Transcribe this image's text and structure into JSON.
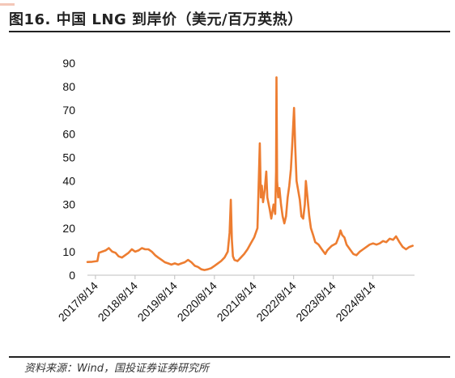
{
  "title": "图16. 中国 LNG 到岸价（美元/百万英热）",
  "source": "资料来源：Wind，国投证券证券研究所",
  "colors": {
    "line": "#ed7d31",
    "axis": "#bfbfbf",
    "text": "#111111"
  },
  "chart_data": {
    "type": "line",
    "title": "图16. 中国 LNG 到岸价（美元/百万英热）",
    "xlabel": "",
    "ylabel": "",
    "ylim": [
      0,
      90
    ],
    "yticks": [
      0,
      10,
      20,
      30,
      40,
      50,
      60,
      70,
      80,
      90
    ],
    "xlim": [
      "2017-06-01",
      "2025-09-01"
    ],
    "xticks": [
      "2017/8/14",
      "2018/8/14",
      "2019/8/14",
      "2020/8/14",
      "2021/8/14",
      "2022/8/14",
      "2023/8/14",
      "2024/8/14"
    ],
    "grid": false,
    "legend": "none",
    "series": [
      {
        "name": "",
        "points": [
          [
            "2017-06-01",
            5.6
          ],
          [
            "2017-07-15",
            5.7
          ],
          [
            "2017-09-01",
            6.0
          ],
          [
            "2017-09-15",
            9.5
          ],
          [
            "2017-10-15",
            10.0
          ],
          [
            "2017-11-15",
            10.5
          ],
          [
            "2017-12-15",
            11.5
          ],
          [
            "2018-01-15",
            10.0
          ],
          [
            "2018-02-15",
            9.5
          ],
          [
            "2018-03-15",
            8.0
          ],
          [
            "2018-04-15",
            7.5
          ],
          [
            "2018-05-15",
            8.5
          ],
          [
            "2018-06-15",
            9.5
          ],
          [
            "2018-07-15",
            11.0
          ],
          [
            "2018-08-15",
            10.0
          ],
          [
            "2018-09-15",
            10.5
          ],
          [
            "2018-10-15",
            11.5
          ],
          [
            "2018-11-15",
            11.0
          ],
          [
            "2018-12-15",
            11.0
          ],
          [
            "2019-01-15",
            10.0
          ],
          [
            "2019-02-15",
            8.5
          ],
          [
            "2019-03-15",
            7.5
          ],
          [
            "2019-04-15",
            6.5
          ],
          [
            "2019-05-15",
            5.5
          ],
          [
            "2019-06-15",
            5.0
          ],
          [
            "2019-07-15",
            4.5
          ],
          [
            "2019-08-15",
            5.0
          ],
          [
            "2019-09-15",
            4.5
          ],
          [
            "2019-10-15",
            5.0
          ],
          [
            "2019-11-15",
            5.5
          ],
          [
            "2019-12-15",
            6.5
          ],
          [
            "2020-01-15",
            5.5
          ],
          [
            "2020-02-15",
            4.0
          ],
          [
            "2020-03-15",
            3.5
          ],
          [
            "2020-04-15",
            2.5
          ],
          [
            "2020-05-15",
            2.2
          ],
          [
            "2020-06-15",
            2.5
          ],
          [
            "2020-07-15",
            3.0
          ],
          [
            "2020-08-15",
            4.0
          ],
          [
            "2020-09-15",
            5.0
          ],
          [
            "2020-10-15",
            6.0
          ],
          [
            "2020-11-15",
            7.5
          ],
          [
            "2020-12-15",
            10.0
          ],
          [
            "2021-01-01",
            18.0
          ],
          [
            "2021-01-12",
            32.0
          ],
          [
            "2021-01-22",
            15.0
          ],
          [
            "2021-02-01",
            8.0
          ],
          [
            "2021-02-15",
            6.5
          ],
          [
            "2021-03-15",
            6.0
          ],
          [
            "2021-04-15",
            7.5
          ],
          [
            "2021-05-15",
            9.0
          ],
          [
            "2021-06-15",
            11.0
          ],
          [
            "2021-07-15",
            13.5
          ],
          [
            "2021-08-15",
            16.0
          ],
          [
            "2021-09-15",
            20.0
          ],
          [
            "2021-10-06",
            56.0
          ],
          [
            "2021-10-16",
            33.0
          ],
          [
            "2021-10-25",
            38.0
          ],
          [
            "2021-11-05",
            31.0
          ],
          [
            "2021-11-20",
            36.0
          ],
          [
            "2021-12-05",
            44.0
          ],
          [
            "2021-12-15",
            33.0
          ],
          [
            "2022-01-05",
            28.0
          ],
          [
            "2022-01-20",
            24.0
          ],
          [
            "2022-02-10",
            30.0
          ],
          [
            "2022-02-25",
            26.0
          ],
          [
            "2022-03-05",
            44.0
          ],
          [
            "2022-03-09",
            84.0
          ],
          [
            "2022-03-15",
            40.0
          ],
          [
            "2022-03-25",
            33.0
          ],
          [
            "2022-04-05",
            37.0
          ],
          [
            "2022-04-20",
            30.0
          ],
          [
            "2022-05-05",
            25.0
          ],
          [
            "2022-05-20",
            22.0
          ],
          [
            "2022-06-05",
            25.0
          ],
          [
            "2022-06-20",
            33.0
          ],
          [
            "2022-07-05",
            38.0
          ],
          [
            "2022-07-20",
            45.0
          ],
          [
            "2022-08-01",
            55.0
          ],
          [
            "2022-08-18",
            71.0
          ],
          [
            "2022-08-28",
            55.0
          ],
          [
            "2022-09-10",
            40.0
          ],
          [
            "2022-09-25",
            36.0
          ],
          [
            "2022-10-10",
            32.0
          ],
          [
            "2022-10-25",
            25.0
          ],
          [
            "2022-11-10",
            24.0
          ],
          [
            "2022-11-25",
            30.0
          ],
          [
            "2022-12-05",
            40.0
          ],
          [
            "2022-12-20",
            33.0
          ],
          [
            "2023-01-05",
            25.0
          ],
          [
            "2023-01-20",
            20.0
          ],
          [
            "2023-02-10",
            17.0
          ],
          [
            "2023-03-01",
            14.0
          ],
          [
            "2023-04-01",
            13.0
          ],
          [
            "2023-05-01",
            11.0
          ],
          [
            "2023-06-01",
            9.0
          ],
          [
            "2023-06-20",
            10.5
          ],
          [
            "2023-07-10",
            11.5
          ],
          [
            "2023-08-01",
            12.5
          ],
          [
            "2023-08-20",
            13.0
          ],
          [
            "2023-09-10",
            13.5
          ],
          [
            "2023-10-05",
            16.5
          ],
          [
            "2023-10-20",
            19.0
          ],
          [
            "2023-11-05",
            17.0
          ],
          [
            "2023-11-25",
            16.0
          ],
          [
            "2023-12-15",
            13.0
          ],
          [
            "2024-01-15",
            11.0
          ],
          [
            "2024-02-15",
            9.0
          ],
          [
            "2024-03-15",
            8.5
          ],
          [
            "2024-04-15",
            10.0
          ],
          [
            "2024-05-15",
            11.0
          ],
          [
            "2024-06-15",
            12.0
          ],
          [
            "2024-07-15",
            13.0
          ],
          [
            "2024-08-15",
            13.5
          ],
          [
            "2024-09-15",
            13.0
          ],
          [
            "2024-10-15",
            13.5
          ],
          [
            "2024-11-15",
            14.5
          ],
          [
            "2024-12-15",
            14.0
          ],
          [
            "2025-01-15",
            15.5
          ],
          [
            "2025-02-15",
            15.0
          ],
          [
            "2025-03-15",
            16.5
          ],
          [
            "2025-04-15",
            14.0
          ],
          [
            "2025-05-15",
            12.0
          ],
          [
            "2025-06-15",
            11.0
          ],
          [
            "2025-07-15",
            12.0
          ],
          [
            "2025-08-15",
            12.5
          ]
        ]
      }
    ]
  }
}
